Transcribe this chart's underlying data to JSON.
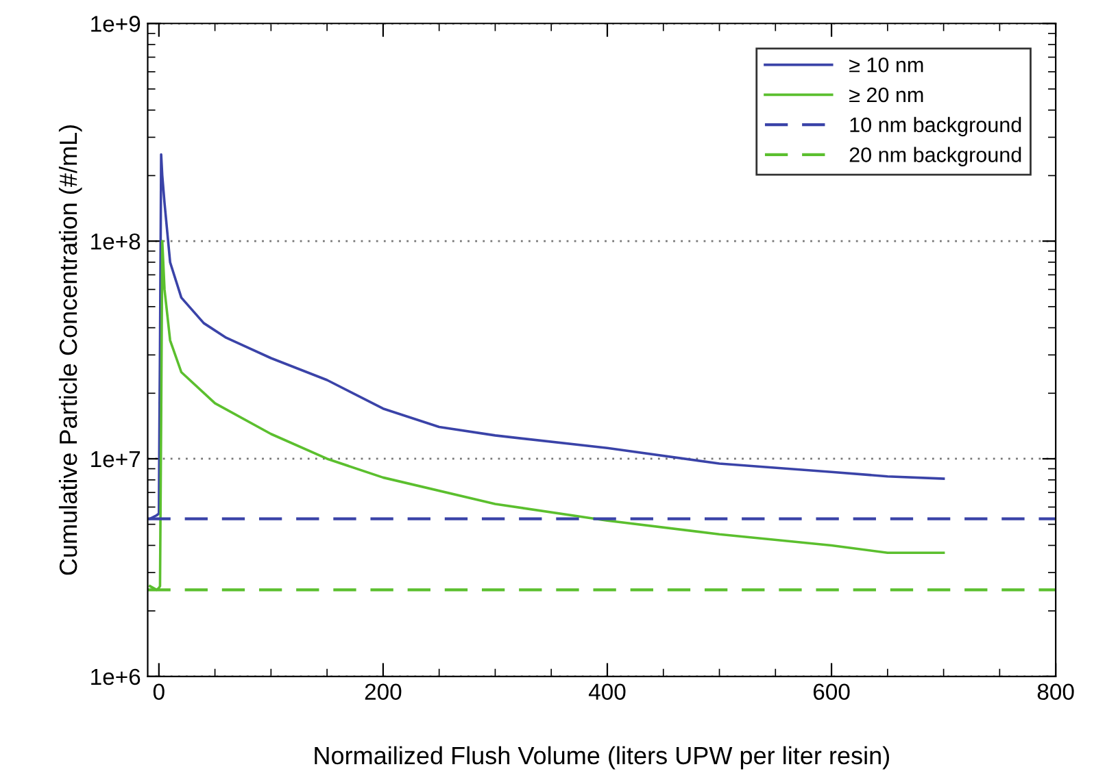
{
  "chart_data": {
    "type": "line",
    "xlabel": "Normailized Flush Volume (liters UPW per liter resin)",
    "ylabel": "Cumulative Particle Concentration (#/mL)",
    "log": "y",
    "grid": "y",
    "legend": "top right",
    "line_style": "solid",
    "marker": "none",
    "xlim": [
      -10,
      800
    ],
    "xticks": [
      0,
      200,
      400,
      600,
      800
    ],
    "ylim": [
      1000000,
      1000000000
    ],
    "yticks": [
      {
        "value": 1000000,
        "label": "1e+6"
      },
      {
        "value": 10000000,
        "label": "1e+7"
      },
      {
        "value": 100000000,
        "label": "1e+8"
      },
      {
        "value": 1000000000,
        "label": "1e+9"
      }
    ],
    "series": [
      {
        "name": "≥ 10 nm",
        "color": "#3a43a8",
        "x": [
          -8,
          -2,
          0,
          0.5,
          1,
          2,
          3,
          5,
          10,
          20,
          40,
          60,
          100,
          150,
          200,
          250,
          300,
          400,
          500,
          600,
          650,
          700
        ],
        "values": [
          5300000,
          5500000,
          5600000,
          15000000,
          33000000,
          250000000,
          200000000,
          150000000,
          80000000,
          55000000,
          42000000,
          36000000,
          29000000,
          23000000,
          17000000,
          14000000,
          12800000,
          11200000,
          9500000,
          8700000,
          8300000,
          8100000
        ]
      },
      {
        "name": "≥ 20 nm",
        "color": "#5bbf2e",
        "x": [
          -8,
          -2,
          0,
          1,
          2,
          3,
          5,
          10,
          20,
          50,
          100,
          150,
          200,
          300,
          400,
          500,
          600,
          650,
          700
        ],
        "values": [
          2600000,
          2500000,
          2550000,
          2600000,
          15000000,
          100000000,
          60000000,
          35000000,
          25000000,
          18000000,
          13000000,
          10000000,
          8200000,
          6200000,
          5200000,
          4500000,
          4000000,
          3700000,
          3700000
        ]
      }
    ],
    "ref_lines": [
      {
        "axis": "y",
        "value": 5300000,
        "label": "10 nm background",
        "color": "#3a43a8",
        "line_style": "dashed"
      },
      {
        "axis": "y",
        "value": 2500000,
        "label": "20 nm background",
        "color": "#5bbf2e",
        "line_style": "dashed"
      }
    ]
  }
}
